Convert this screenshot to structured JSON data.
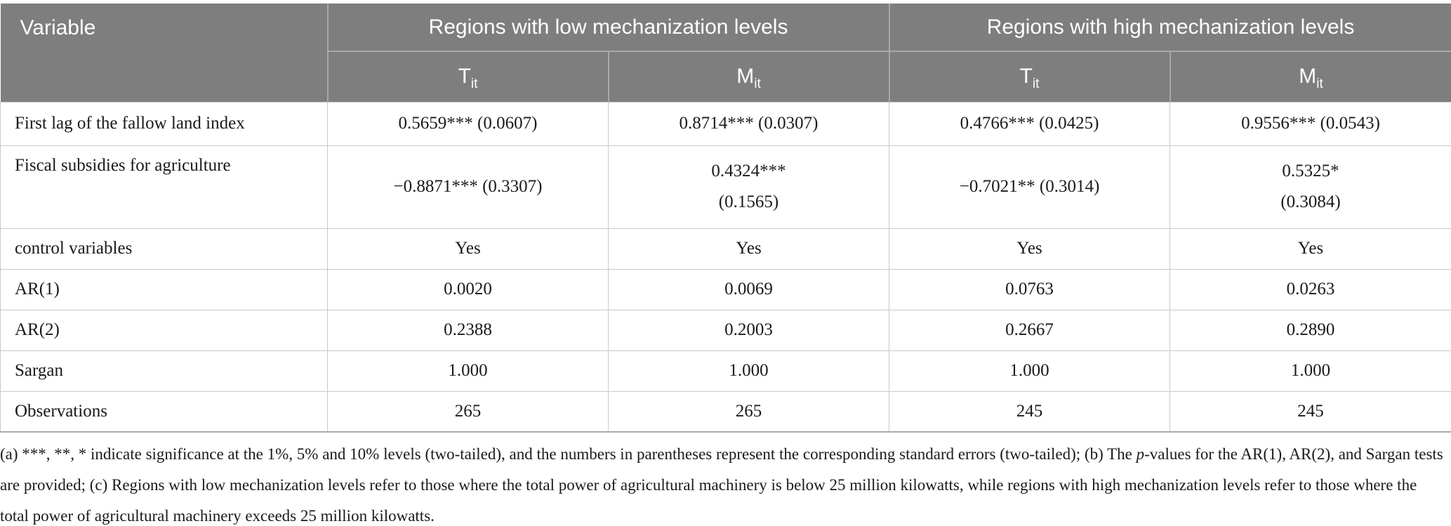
{
  "table": {
    "header": {
      "variable_label": "Variable",
      "groups": [
        {
          "label": "Regions with low mechanization levels"
        },
        {
          "label": "Regions with high mechanization levels"
        }
      ],
      "subcolumns": [
        {
          "base": "T",
          "sub": "it"
        },
        {
          "base": "M",
          "sub": "it"
        },
        {
          "base": "T",
          "sub": "it"
        },
        {
          "base": "M",
          "sub": "it"
        }
      ]
    },
    "rows": [
      {
        "label": "First lag of the fallow land index",
        "cells": [
          {
            "value": "0.5659*** (0.0607)"
          },
          {
            "value": "0.8714*** (0.0307)"
          },
          {
            "value": "0.4766*** (0.0425)"
          },
          {
            "value": "0.9556*** (0.0543)"
          }
        ]
      },
      {
        "label": "Fiscal subsidies for agriculture",
        "cells": [
          {
            "value": "−0.8871*** (0.3307)"
          },
          {
            "value": "0.4324***",
            "line2": "(0.1565)"
          },
          {
            "value": "−0.7021** (0.3014)"
          },
          {
            "value": "0.5325*",
            "line2": "(0.3084)"
          }
        ]
      },
      {
        "label": "control variables",
        "cells": [
          {
            "value": "Yes"
          },
          {
            "value": "Yes"
          },
          {
            "value": "Yes"
          },
          {
            "value": "Yes"
          }
        ]
      },
      {
        "label": "AR(1)",
        "cells": [
          {
            "value": "0.0020"
          },
          {
            "value": "0.0069"
          },
          {
            "value": "0.0763"
          },
          {
            "value": "0.0263"
          }
        ]
      },
      {
        "label": "AR(2)",
        "cells": [
          {
            "value": "0.2388"
          },
          {
            "value": "0.2003"
          },
          {
            "value": "0.2667"
          },
          {
            "value": "0.2890"
          }
        ]
      },
      {
        "label": "Sargan",
        "cells": [
          {
            "value": "1.000"
          },
          {
            "value": "1.000"
          },
          {
            "value": "1.000"
          },
          {
            "value": "1.000"
          }
        ]
      },
      {
        "label": "Observations",
        "cells": [
          {
            "value": "265"
          },
          {
            "value": "265"
          },
          {
            "value": "245"
          },
          {
            "value": "245"
          }
        ]
      }
    ]
  },
  "footnote": {
    "segments": [
      {
        "text": "(a) ***, **, * indicate significance at the 1%, 5% and 10% levels (two-tailed), and the numbers in parentheses represent the corresponding standard errors (two-tailed); (b) The ",
        "italic": false
      },
      {
        "text": "p",
        "italic": true
      },
      {
        "text": "-values for the AR(1), AR(2), and Sargan tests are provided; (c) Regions with low mechanization levels refer to those where the total power of agricultural machinery is below 25 million kilowatts, while regions with high mechanization levels refer to those where the total power of agricultural machinery exceeds 25 million kilowatts.",
        "italic": false
      }
    ]
  },
  "colors": {
    "header_bg": "#7e7e7e",
    "header_text": "#ffffff",
    "body_text": "#1a1a1a",
    "grid_line": "#c9c9c9",
    "header_divider": "#a8a8a8"
  }
}
